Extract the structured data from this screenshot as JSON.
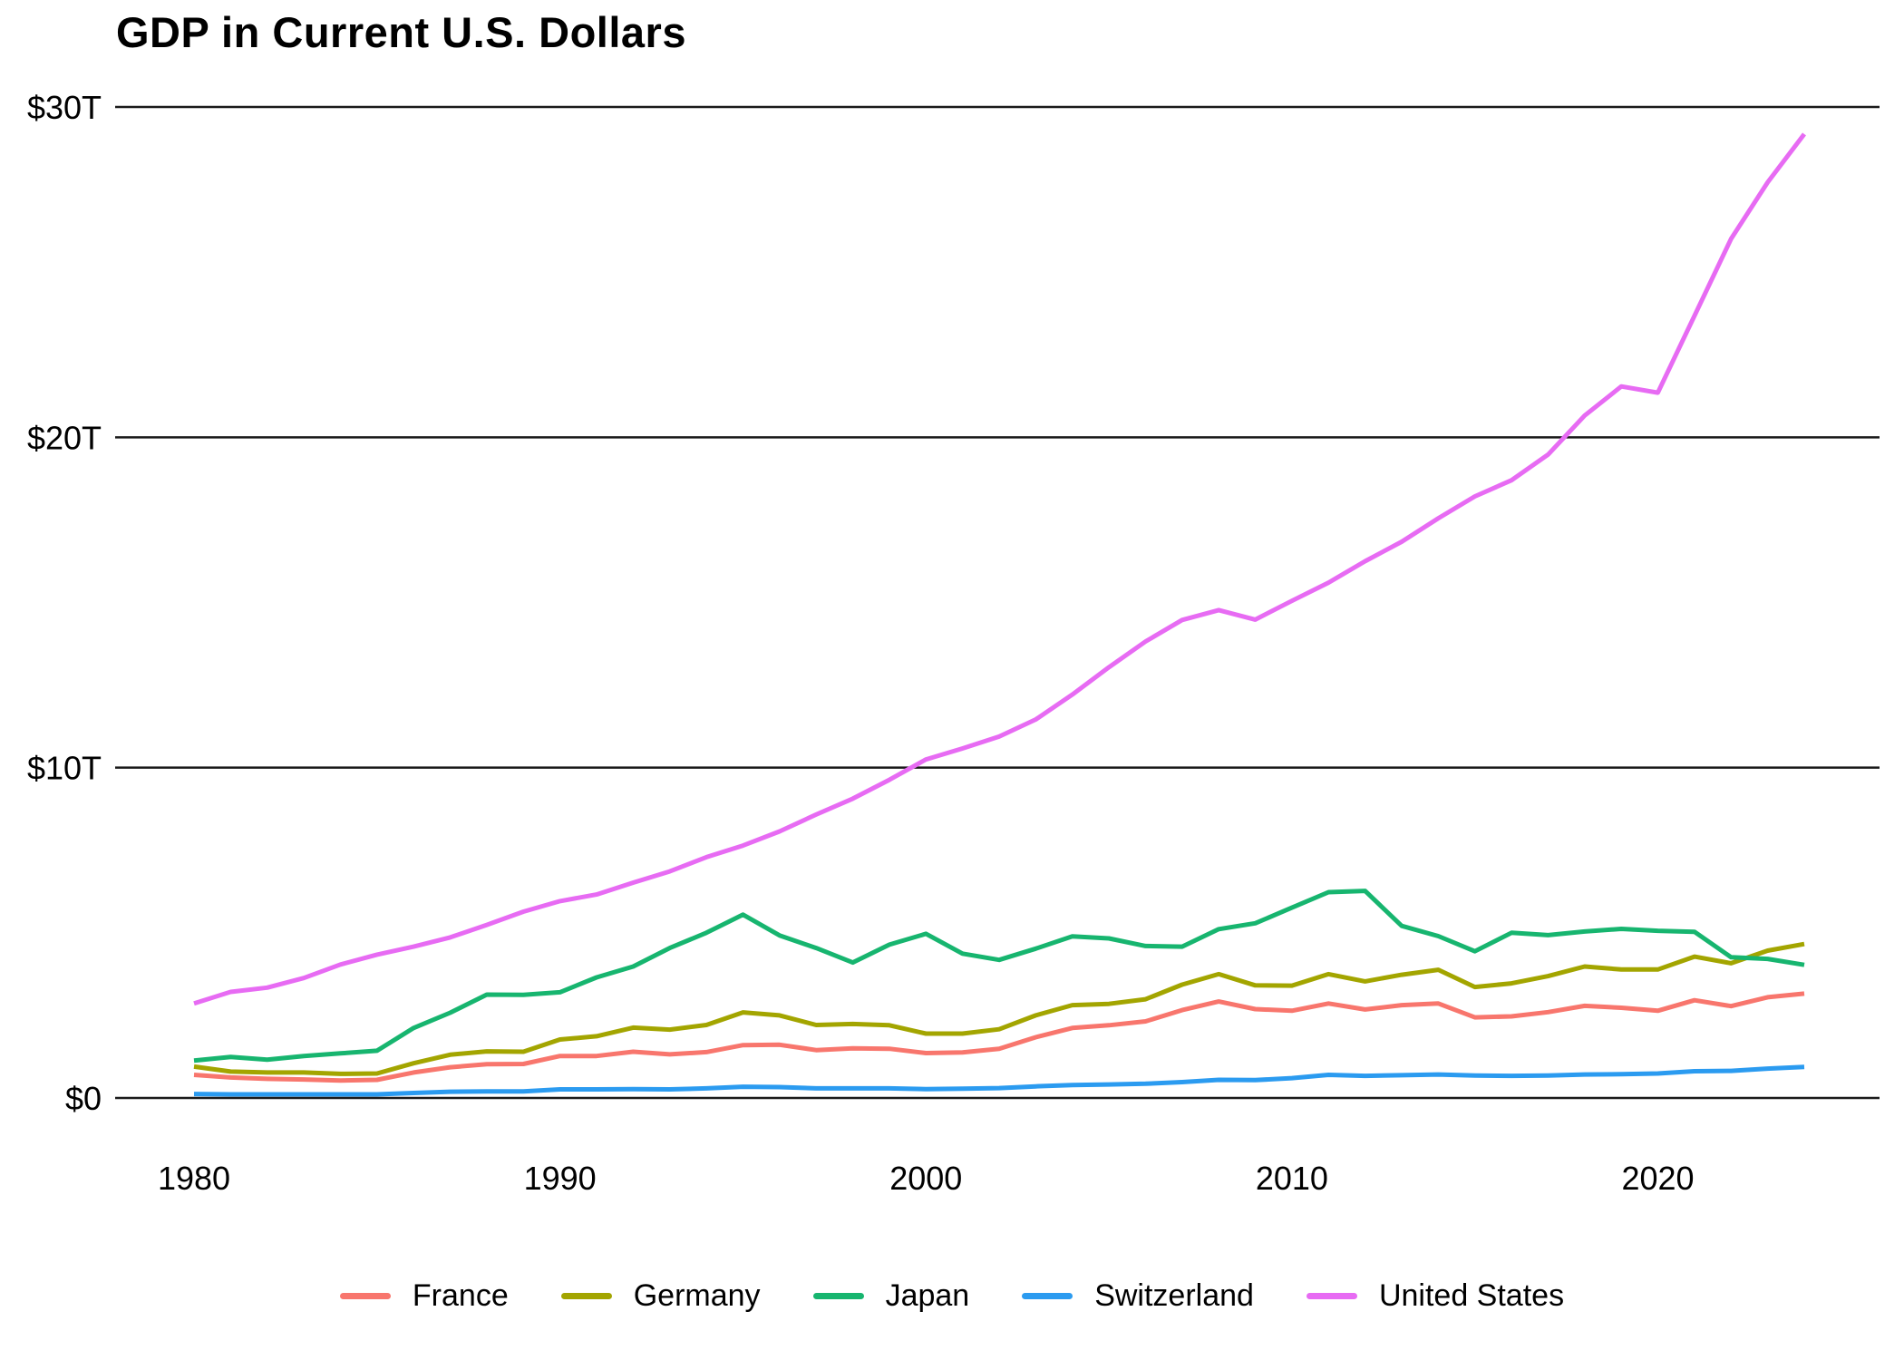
{
  "chart_data": {
    "type": "line",
    "title": "GDP in Current U.S. Dollars",
    "xlabel": "",
    "ylabel": "",
    "xlim": [
      1980,
      2024
    ],
    "ylim": [
      0,
      30
    ],
    "grid": "horizontal",
    "legend_position": "bottom",
    "x_ticks": [
      "1980",
      "1990",
      "2000",
      "2010",
      "2020"
    ],
    "x_tick_values": [
      1980,
      1990,
      2000,
      2010,
      2020
    ],
    "y_ticks": [
      {
        "value": 0,
        "label": "$0"
      },
      {
        "value": 10,
        "label": "$10T"
      },
      {
        "value": 20,
        "label": "$20T"
      },
      {
        "value": 30,
        "label": "$30T"
      }
    ],
    "x": [
      1980,
      1981,
      1982,
      1983,
      1984,
      1985,
      1986,
      1987,
      1988,
      1989,
      1990,
      1991,
      1992,
      1993,
      1994,
      1995,
      1996,
      1997,
      1998,
      1999,
      2000,
      2001,
      2002,
      2003,
      2004,
      2005,
      2006,
      2007,
      2008,
      2009,
      2010,
      2011,
      2012,
      2013,
      2014,
      2015,
      2016,
      2017,
      2018,
      2019,
      2020,
      2021,
      2022,
      2023,
      2024
    ],
    "unit": "trillions of U.S. dollars",
    "series": [
      {
        "name": "France",
        "color": "#F8766D",
        "values": [
          0.7,
          0.62,
          0.58,
          0.56,
          0.53,
          0.55,
          0.77,
          0.93,
          1.02,
          1.03,
          1.27,
          1.27,
          1.4,
          1.32,
          1.39,
          1.6,
          1.61,
          1.45,
          1.5,
          1.49,
          1.36,
          1.38,
          1.49,
          1.84,
          2.12,
          2.2,
          2.32,
          2.66,
          2.92,
          2.69,
          2.64,
          2.86,
          2.68,
          2.81,
          2.86,
          2.44,
          2.47,
          2.6,
          2.79,
          2.73,
          2.64,
          2.96,
          2.78,
          3.05,
          3.16
        ]
      },
      {
        "name": "Germany",
        "color": "#A3A500",
        "values": [
          0.95,
          0.8,
          0.77,
          0.77,
          0.73,
          0.74,
          1.05,
          1.31,
          1.41,
          1.4,
          1.77,
          1.87,
          2.13,
          2.07,
          2.21,
          2.59,
          2.5,
          2.21,
          2.24,
          2.2,
          1.95,
          1.95,
          2.08,
          2.5,
          2.81,
          2.85,
          2.99,
          3.43,
          3.75,
          3.41,
          3.4,
          3.75,
          3.53,
          3.73,
          3.88,
          3.36,
          3.47,
          3.69,
          3.98,
          3.89,
          3.89,
          4.28,
          4.08,
          4.46,
          4.66
        ]
      },
      {
        "name": "Japan",
        "color": "#17B56F",
        "values": [
          1.13,
          1.24,
          1.16,
          1.27,
          1.35,
          1.43,
          2.12,
          2.58,
          3.13,
          3.12,
          3.2,
          3.65,
          3.98,
          4.54,
          5.0,
          5.55,
          4.92,
          4.54,
          4.1,
          4.64,
          4.97,
          4.37,
          4.18,
          4.52,
          4.89,
          4.83,
          4.6,
          4.58,
          5.11,
          5.29,
          5.76,
          6.23,
          6.27,
          5.21,
          4.9,
          4.44,
          5.0,
          4.93,
          5.04,
          5.12,
          5.06,
          5.03,
          4.26,
          4.21,
          4.03
        ]
      },
      {
        "name": "Switzerland",
        "color": "#2B9BF0",
        "values": [
          0.12,
          0.11,
          0.11,
          0.11,
          0.11,
          0.11,
          0.15,
          0.19,
          0.2,
          0.2,
          0.26,
          0.26,
          0.27,
          0.26,
          0.29,
          0.34,
          0.33,
          0.29,
          0.29,
          0.29,
          0.27,
          0.28,
          0.3,
          0.35,
          0.39,
          0.41,
          0.43,
          0.48,
          0.55,
          0.54,
          0.6,
          0.7,
          0.67,
          0.69,
          0.71,
          0.68,
          0.67,
          0.68,
          0.71,
          0.72,
          0.74,
          0.81,
          0.82,
          0.89,
          0.94
        ]
      },
      {
        "name": "United States",
        "color": "#E76BF3",
        "values": [
          2.86,
          3.21,
          3.34,
          3.63,
          4.04,
          4.34,
          4.58,
          4.86,
          5.24,
          5.64,
          5.96,
          6.16,
          6.52,
          6.86,
          7.29,
          7.64,
          8.07,
          8.58,
          9.06,
          9.63,
          10.25,
          10.58,
          10.94,
          11.46,
          12.21,
          13.04,
          13.82,
          14.47,
          14.77,
          14.48,
          15.05,
          15.6,
          16.25,
          16.84,
          17.55,
          18.21,
          18.7,
          19.48,
          20.66,
          21.54,
          21.35,
          23.68,
          26.01,
          27.72,
          29.18
        ]
      }
    ]
  }
}
